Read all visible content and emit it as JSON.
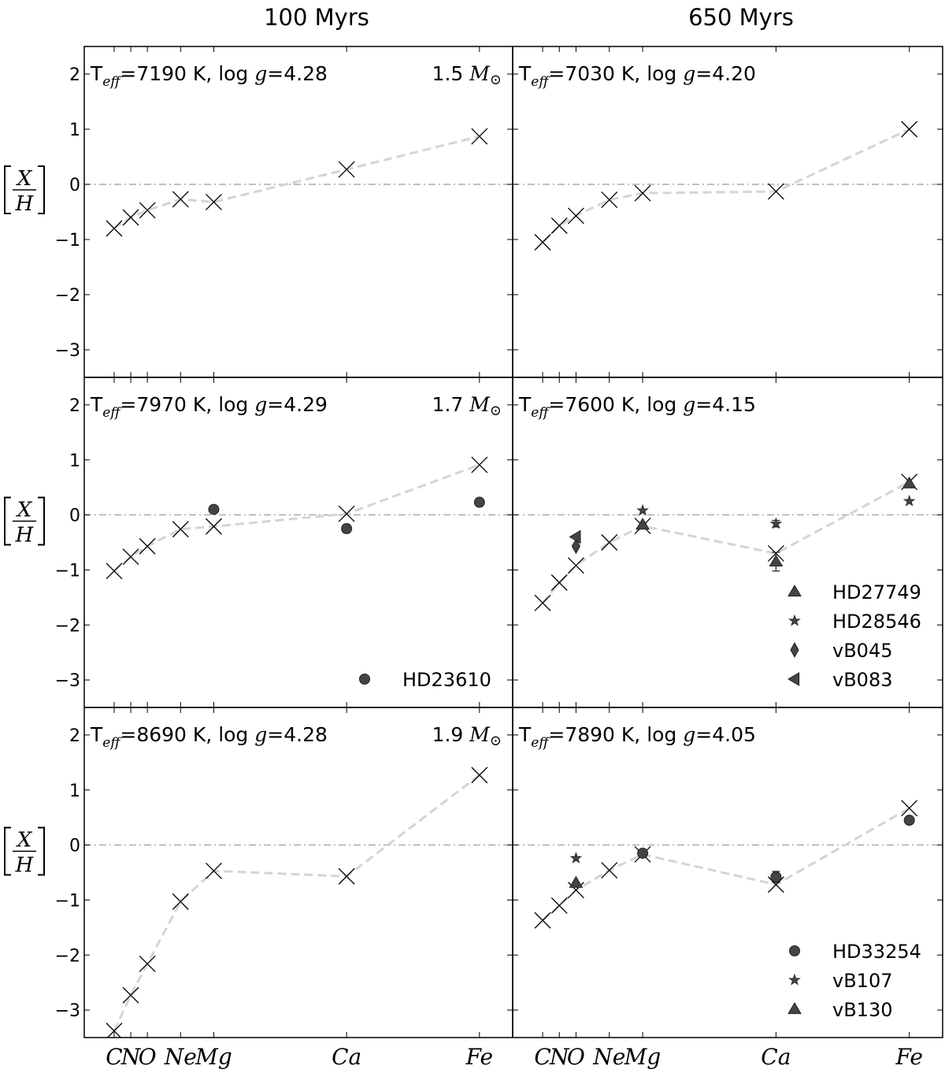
{
  "figure": {
    "column_titles": [
      "100 Myrs",
      "650 Myrs"
    ],
    "ylabel": {
      "num": "X",
      "den": "H"
    }
  },
  "chart_data": {
    "type": "scatter",
    "elements": [
      "C",
      "N",
      "O",
      "Ne",
      "Mg",
      "Ca",
      "Fe"
    ],
    "element_x": [
      1,
      1.5,
      2,
      3,
      4,
      8,
      12
    ],
    "xlim": [
      0.1,
      13.0
    ],
    "ylim": [
      -3.5,
      2.5
    ],
    "yticks": [
      2,
      1,
      0,
      -1,
      -2,
      -3
    ],
    "ytick_labels": [
      "2",
      "1",
      "0",
      "−1",
      "−2",
      "−3"
    ],
    "reference_line": 0,
    "panels": [
      {
        "row": 0,
        "col": 0,
        "params": "T_eff=7190 K, log g=4.28",
        "teff": "7190",
        "logg": "4.28",
        "mass": "1.5",
        "model": [
          -0.8,
          -0.6,
          -0.47,
          -0.27,
          -0.32,
          0.27,
          0.87
        ],
        "observations": [],
        "legend": []
      },
      {
        "row": 0,
        "col": 1,
        "params": "T_eff=7030 K, log g=4.20",
        "teff": "7030",
        "logg": "4.20",
        "model": [
          -1.05,
          -0.75,
          -0.57,
          -0.28,
          -0.16,
          -0.13,
          1.0
        ],
        "observations": [],
        "legend": []
      },
      {
        "row": 1,
        "col": 0,
        "params": "T_eff=7970 K, log g=4.29",
        "teff": "7970",
        "logg": "4.29",
        "mass": "1.7",
        "model": [
          -1.02,
          -0.76,
          -0.57,
          -0.26,
          -0.21,
          0.02,
          0.91
        ],
        "observations": [
          {
            "star": "HD23610",
            "marker": "circle",
            "points": [
              {
                "element": "Mg",
                "value": 0.1
              },
              {
                "element": "Ca",
                "value": -0.25,
                "err": 0.07
              },
              {
                "element": "Fe",
                "value": 0.23
              }
            ]
          }
        ],
        "legend": [
          {
            "label": "HD23610",
            "marker": "circle"
          }
        ]
      },
      {
        "row": 1,
        "col": 1,
        "params": "T_eff=7600 K, log g=4.15",
        "teff": "7600",
        "logg": "4.15",
        "model": [
          -1.6,
          -1.23,
          -0.92,
          -0.5,
          -0.2,
          -0.7,
          0.6
        ],
        "observations": [
          {
            "star": "HD27749",
            "marker": "triangle-up",
            "points": [
              {
                "element": "Mg",
                "value": -0.18
              },
              {
                "element": "Ca",
                "value": -0.85,
                "err": 0.17
              },
              {
                "element": "Fe",
                "value": 0.57
              }
            ]
          },
          {
            "star": "HD28546",
            "marker": "star",
            "points": [
              {
                "element": "Mg",
                "value": 0.08
              },
              {
                "element": "Ca",
                "value": -0.16,
                "err": 0.06
              },
              {
                "element": "Fe",
                "value": 0.25
              }
            ]
          },
          {
            "star": "vB045",
            "marker": "thin-diamond",
            "points": [
              {
                "element": "O",
                "value": -0.57
              }
            ]
          },
          {
            "star": "vB083",
            "marker": "triangle-left",
            "points": [
              {
                "element": "O",
                "value": -0.4
              }
            ]
          }
        ],
        "legend": [
          {
            "label": "HD27749",
            "marker": "triangle-up"
          },
          {
            "label": "HD28546",
            "marker": "star"
          },
          {
            "label": "vB045",
            "marker": "thin-diamond"
          },
          {
            "label": "vB083",
            "marker": "triangle-left"
          }
        ]
      },
      {
        "row": 2,
        "col": 0,
        "params": "T_eff=8690 K, log g=4.28",
        "teff": "8690",
        "logg": "4.28",
        "mass": "1.9",
        "model": [
          -3.38,
          -2.73,
          -2.16,
          -1.03,
          -0.47,
          -0.57,
          1.27
        ],
        "observations": [],
        "legend": []
      },
      {
        "row": 2,
        "col": 1,
        "params": "T_eff=7890 K, log g=4.05",
        "teff": "7890",
        "logg": "4.05",
        "model": [
          -1.37,
          -1.1,
          -0.82,
          -0.46,
          -0.17,
          -0.72,
          0.67
        ],
        "observations": [
          {
            "star": "HD33254",
            "marker": "circle",
            "points": [
              {
                "element": "Mg",
                "value": -0.15
              },
              {
                "element": "Ca",
                "value": -0.58,
                "err": 0.1
              },
              {
                "element": "Fe",
                "value": 0.45,
                "err": 0.06
              }
            ]
          },
          {
            "star": "vB107",
            "marker": "star",
            "points": [
              {
                "element": "O",
                "value": -0.24
              }
            ]
          },
          {
            "star": "vB130",
            "marker": "triangle-up",
            "points": [
              {
                "element": "O",
                "value": -0.69
              }
            ]
          }
        ],
        "legend": [
          {
            "label": "HD33254",
            "marker": "circle"
          },
          {
            "label": "vB107",
            "marker": "star"
          },
          {
            "label": "vB130",
            "marker": "triangle-up"
          }
        ]
      }
    ]
  }
}
